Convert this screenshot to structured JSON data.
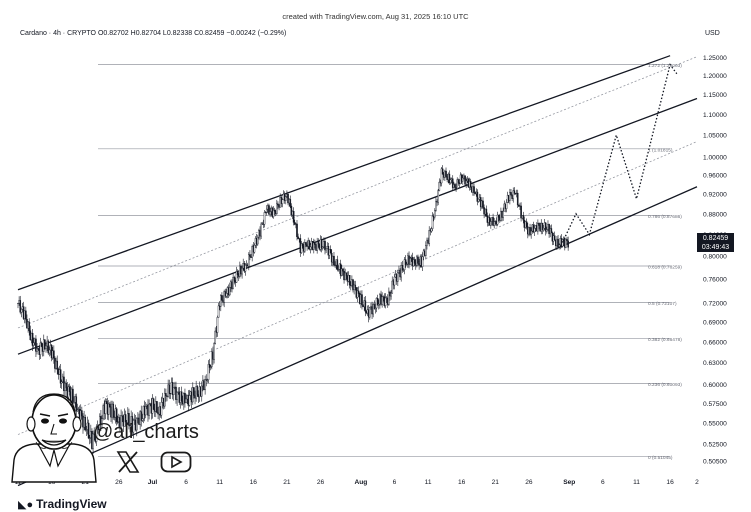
{
  "header": {
    "created": "created with TradingView.com, Aug 31, 2025 16:10 UTC",
    "symbol_line": "Cardano · 4h · CRYPTO  O0.82702  H0.82704  L0.82338  C0.82459  −0.00242 (−0.29%)",
    "currency": "USD"
  },
  "current_price": {
    "label": "0.82459",
    "countdown": "03:49:43"
  },
  "footer": {
    "logo_text": "TradingView",
    "handle": "@ali_charts"
  },
  "icons": [
    "avatar-illustration",
    "x-logo-icon",
    "youtube-play-icon",
    "tradingview-logo-icon"
  ],
  "colors": {
    "channel": "#131722",
    "fib": "#9598a1",
    "candles": "#131722",
    "price_tag": "#131722"
  },
  "chart_data": {
    "type": "line",
    "title": "Cardano · 4h · CRYPTO",
    "xlabel": "",
    "ylabel": "",
    "y_scale": "log",
    "ylim": [
      0.495,
      1.3
    ],
    "xlim": [
      "2025-06-11",
      "2025-09-20"
    ],
    "x_ticks": [
      {
        "label": "11",
        "date": "2025-06-11"
      },
      {
        "label": "16",
        "date": "2025-06-16"
      },
      {
        "label": "21",
        "date": "2025-06-21"
      },
      {
        "label": "26",
        "date": "2025-06-26"
      },
      {
        "label": "Jul",
        "date": "2025-07-01",
        "bold": true
      },
      {
        "label": "6",
        "date": "2025-07-06"
      },
      {
        "label": "11",
        "date": "2025-07-11"
      },
      {
        "label": "16",
        "date": "2025-07-16"
      },
      {
        "label": "21",
        "date": "2025-07-21"
      },
      {
        "label": "26",
        "date": "2025-07-26"
      },
      {
        "label": "Aug",
        "date": "2025-08-01",
        "bold": true
      },
      {
        "label": "6",
        "date": "2025-08-06"
      },
      {
        "label": "11",
        "date": "2025-08-11"
      },
      {
        "label": "16",
        "date": "2025-08-16"
      },
      {
        "label": "21",
        "date": "2025-08-21"
      },
      {
        "label": "26",
        "date": "2025-08-26"
      },
      {
        "label": "Sep",
        "date": "2025-09-01",
        "bold": true
      },
      {
        "label": "6",
        "date": "2025-09-06"
      },
      {
        "label": "11",
        "date": "2025-09-11"
      },
      {
        "label": "16",
        "date": "2025-09-16"
      },
      {
        "label": "2",
        "date": "2025-09-20"
      }
    ],
    "y_ticks": [
      "1.25000",
      "1.20000",
      "1.15000",
      "1.10000",
      "1.05000",
      "1.00000",
      "0.96000",
      "0.92000",
      "0.88000",
      "0.84000",
      "0.80000",
      "0.76000",
      "0.72000",
      "0.69000",
      "0.66000",
      "0.63000",
      "0.60000",
      "0.57500",
      "0.55000",
      "0.52500",
      "0.50500"
    ],
    "series": [
      {
        "name": "ADAUSD",
        "x": [
          "2025-06-11",
          "2025-06-12",
          "2025-06-13",
          "2025-06-14",
          "2025-06-15",
          "2025-06-16",
          "2025-06-17",
          "2025-06-18",
          "2025-06-19",
          "2025-06-20",
          "2025-06-21",
          "2025-06-22",
          "2025-06-23",
          "2025-06-24",
          "2025-06-25",
          "2025-06-26",
          "2025-06-27",
          "2025-06-28",
          "2025-06-29",
          "2025-06-30",
          "2025-07-01",
          "2025-07-02",
          "2025-07-03",
          "2025-07-04",
          "2025-07-05",
          "2025-07-06",
          "2025-07-07",
          "2025-07-08",
          "2025-07-09",
          "2025-07-10",
          "2025-07-11",
          "2025-07-12",
          "2025-07-13",
          "2025-07-14",
          "2025-07-15",
          "2025-07-16",
          "2025-07-17",
          "2025-07-18",
          "2025-07-19",
          "2025-07-20",
          "2025-07-21",
          "2025-07-22",
          "2025-07-23",
          "2025-07-24",
          "2025-07-25",
          "2025-07-26",
          "2025-07-27",
          "2025-07-28",
          "2025-07-29",
          "2025-07-30",
          "2025-07-31",
          "2025-08-01",
          "2025-08-02",
          "2025-08-03",
          "2025-08-04",
          "2025-08-05",
          "2025-08-06",
          "2025-08-07",
          "2025-08-08",
          "2025-08-09",
          "2025-08-10",
          "2025-08-11",
          "2025-08-12",
          "2025-08-13",
          "2025-08-14",
          "2025-08-15",
          "2025-08-16",
          "2025-08-17",
          "2025-08-18",
          "2025-08-19",
          "2025-08-20",
          "2025-08-21",
          "2025-08-22",
          "2025-08-23",
          "2025-08-24",
          "2025-08-25",
          "2025-08-26",
          "2025-08-27",
          "2025-08-28",
          "2025-08-29",
          "2025-08-30",
          "2025-08-31"
        ],
        "values": [
          0.72,
          0.7,
          0.665,
          0.648,
          0.657,
          0.645,
          0.615,
          0.595,
          0.585,
          0.565,
          0.548,
          0.528,
          0.545,
          0.572,
          0.565,
          0.553,
          0.556,
          0.548,
          0.553,
          0.567,
          0.572,
          0.565,
          0.588,
          0.595,
          0.582,
          0.578,
          0.587,
          0.59,
          0.607,
          0.643,
          0.722,
          0.735,
          0.755,
          0.775,
          0.785,
          0.815,
          0.845,
          0.89,
          0.88,
          0.905,
          0.918,
          0.87,
          0.815,
          0.82,
          0.818,
          0.822,
          0.815,
          0.79,
          0.775,
          0.76,
          0.745,
          0.725,
          0.705,
          0.715,
          0.727,
          0.723,
          0.76,
          0.775,
          0.795,
          0.79,
          0.79,
          0.83,
          0.885,
          0.965,
          0.955,
          0.935,
          0.955,
          0.942,
          0.92,
          0.898,
          0.865,
          0.865,
          0.88,
          0.915,
          0.922,
          0.87,
          0.845,
          0.855,
          0.855,
          0.85,
          0.822,
          0.825
        ]
      },
      {
        "name": "projection",
        "style": "dotted",
        "x": [
          "2025-08-31",
          "2025-09-02",
          "2025-09-04",
          "2025-09-08",
          "2025-09-11",
          "2025-09-16",
          "2025-09-17"
        ],
        "values": [
          0.825,
          0.88,
          0.84,
          1.05,
          0.91,
          1.23,
          1.205
        ]
      }
    ],
    "channel": {
      "upper": [
        {
          "x": "2025-06-11",
          "y": 0.742
        },
        {
          "x": "2025-09-16",
          "y": 1.255
        }
      ],
      "middle": [
        {
          "x": "2025-06-11",
          "y": 0.642
        },
        {
          "x": "2025-09-20",
          "y": 1.14
        }
      ],
      "lower": [
        {
          "x": "2025-06-11",
          "y": 0.478
        },
        {
          "x": "2025-09-20",
          "y": 0.935
        }
      ],
      "mid_dotted_upper": [
        {
          "x": "2025-06-11",
          "y": 0.681
        },
        {
          "x": "2025-09-20",
          "y": 1.252
        }
      ],
      "mid_dotted_lower": [
        {
          "x": "2025-06-11",
          "y": 0.536
        },
        {
          "x": "2025-09-20",
          "y": 1.035
        }
      ]
    },
    "fib_levels": [
      {
        "ratio": "1.272",
        "label": "1.272 (1.23003)",
        "value": 1.23003
      },
      {
        "ratio": "1",
        "label": "1 (1.01815)",
        "value": 1.01815
      },
      {
        "ratio": "0.786",
        "label": "0.786 (0.87686)",
        "value": 0.87686
      },
      {
        "ratio": "0.618",
        "label": "0.618 (0.78259)",
        "value": 0.78259
      },
      {
        "ratio": "0.5",
        "label": "0.5 (0.72107)",
        "value": 0.72107
      },
      {
        "ratio": "0.382",
        "label": "0.382 (0.66478)",
        "value": 0.66478
      },
      {
        "ratio": "0.236",
        "label": "0.236 (0.60093)",
        "value": 0.60093
      },
      {
        "ratio": "0",
        "label": "0 (0.51045)",
        "value": 0.51045
      }
    ],
    "grid": false,
    "legend": "none"
  }
}
